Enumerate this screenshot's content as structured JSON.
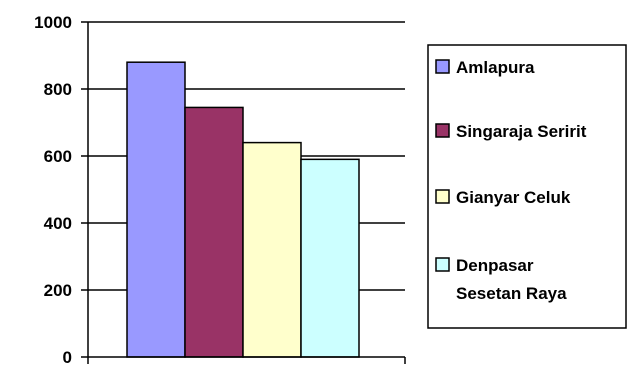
{
  "chart_data": {
    "type": "bar",
    "title": "",
    "xlabel": "",
    "ylabel": "",
    "ylim": [
      0,
      1000
    ],
    "yticks": [
      0,
      200,
      400,
      600,
      800,
      1000
    ],
    "grid": true,
    "legend_position": "right",
    "series": [
      {
        "name": "Amlapura",
        "values": [
          880
        ],
        "color": "#9999FF"
      },
      {
        "name": "Singaraja Seririt",
        "values": [
          745
        ],
        "color": "#993366"
      },
      {
        "name": "Gianyar Celuk",
        "values": [
          640
        ],
        "color": "#FFFFCC"
      },
      {
        "name": "Denpasar Sesetan Raya",
        "values": [
          590
        ],
        "color": "#CCFFFF"
      }
    ],
    "legend_lines": [
      [
        "Amlapura"
      ],
      [
        "Singaraja Seririt"
      ],
      [
        "Gianyar Celuk"
      ],
      [
        "Denpasar",
        "Sesetan Raya"
      ]
    ]
  }
}
